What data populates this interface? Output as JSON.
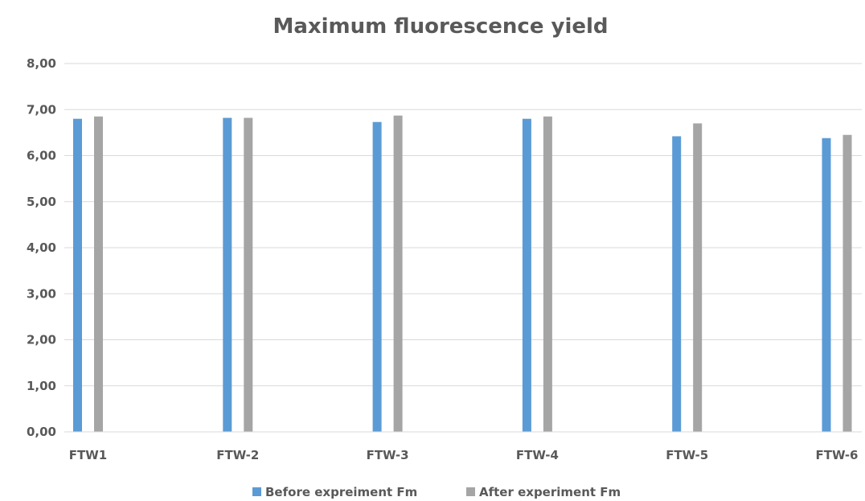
{
  "chart_data": {
    "type": "bar",
    "title": "Maximum fluorescence yield",
    "categories": [
      "FTW1",
      "FTW-2",
      "FTW-3",
      "FTW-4",
      "FTW-5",
      "FTW-6"
    ],
    "series": [
      {
        "name": "Before expreiment Fm",
        "color": "#5b9bd5",
        "values": [
          6.8,
          6.82,
          6.73,
          6.8,
          6.42,
          6.38
        ]
      },
      {
        "name": "After experiment Fm",
        "color": "#a5a5a5",
        "values": [
          6.85,
          6.82,
          6.87,
          6.85,
          6.7,
          6.45
        ]
      }
    ],
    "ylim": [
      0,
      8
    ],
    "yticks": [
      "0,00",
      "1,00",
      "2,00",
      "3,00",
      "4,00",
      "5,00",
      "6,00",
      "7,00",
      "8,00"
    ],
    "grid": true,
    "legend_position": "bottom"
  }
}
